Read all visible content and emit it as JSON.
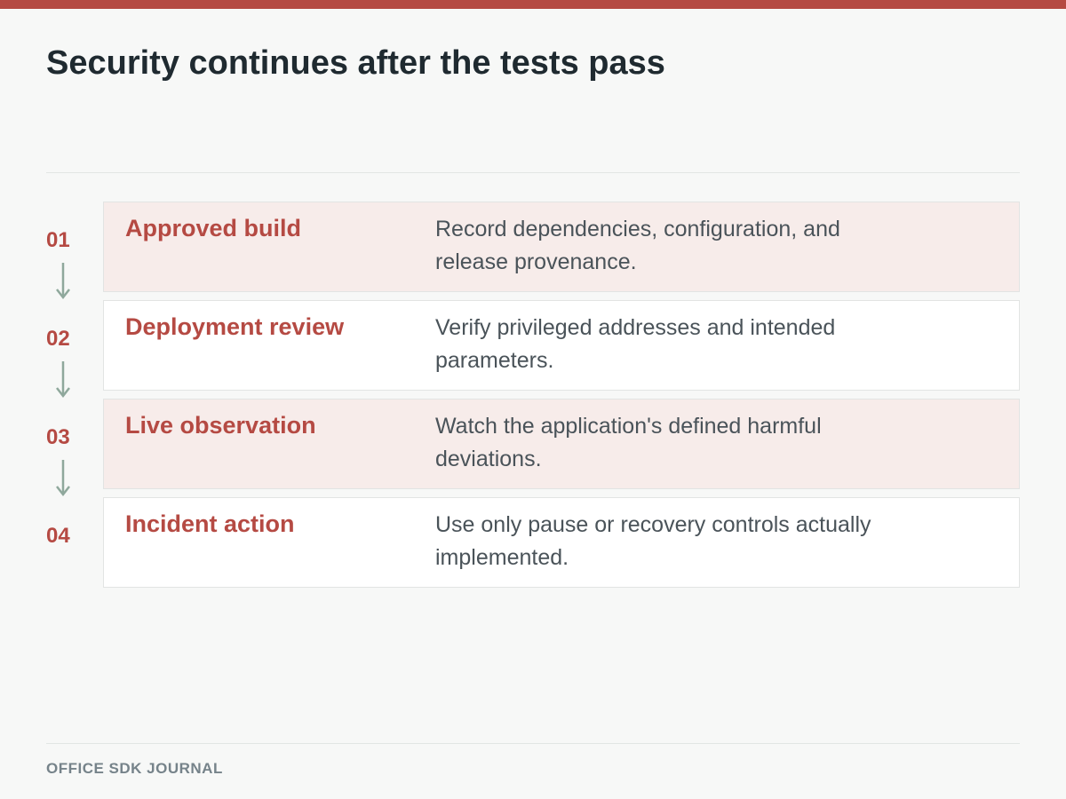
{
  "title": "Security continues after the tests pass",
  "footer": "OFFICE SDK JOURNAL",
  "colors": {
    "accent": "#b54a43",
    "arrow": "#8fa89c",
    "card_tint": "#f7ecea",
    "card_plain": "#ffffff"
  },
  "steps": [
    {
      "number": "01",
      "title": "Approved build",
      "description": "Record dependencies, configuration, and release provenance."
    },
    {
      "number": "02",
      "title": "Deployment review",
      "description": "Verify privileged addresses and intended parameters."
    },
    {
      "number": "03",
      "title": "Live observation",
      "description": "Watch the application's defined harmful deviations."
    },
    {
      "number": "04",
      "title": "Incident action",
      "description": "Use only pause or recovery controls actually implemented."
    }
  ]
}
